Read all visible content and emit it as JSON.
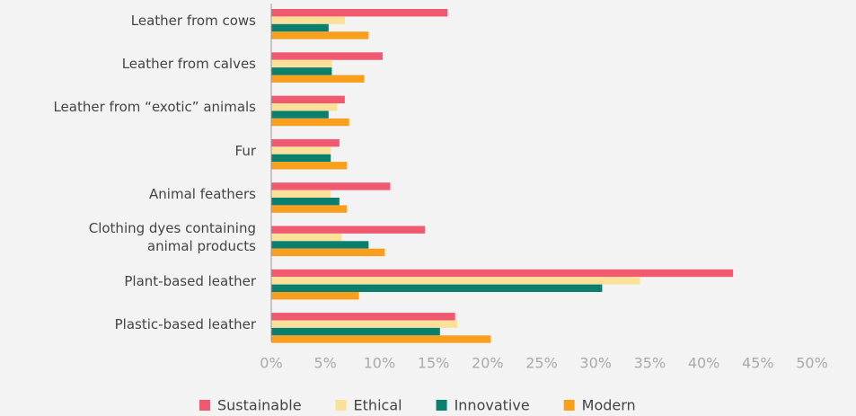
{
  "chart_data": {
    "type": "barh",
    "categories": [
      "Leather from cows",
      "Leather from calves",
      "Leather from “exotic” animals",
      "Fur",
      "Animal feathers",
      "Clothing dyes containing animal products",
      "Plant-based leather",
      "Plastic-based leather"
    ],
    "series": [
      {
        "name": "Sustainable",
        "color": "#f0596f",
        "values": [
          16.3,
          10.3,
          6.8,
          6.3,
          11.0,
          14.2,
          42.7,
          17.0
        ]
      },
      {
        "name": "Ethical",
        "color": "#fbe09a",
        "values": [
          6.8,
          5.6,
          6.1,
          5.5,
          5.5,
          6.5,
          34.1,
          17.2
        ]
      },
      {
        "name": "Innovative",
        "color": "#0b7f6d",
        "values": [
          5.3,
          5.6,
          5.3,
          5.5,
          6.3,
          9.0,
          30.6,
          15.6
        ]
      },
      {
        "name": "Modern",
        "color": "#f8a01d",
        "values": [
          9.0,
          8.6,
          7.2,
          7.0,
          7.0,
          10.5,
          8.1,
          20.3
        ]
      }
    ],
    "xlim": [
      0,
      50
    ],
    "xticks": [
      {
        "value": 0,
        "label": "0%"
      },
      {
        "value": 5,
        "label": "5%"
      },
      {
        "value": 10,
        "label": "10%"
      },
      {
        "value": 15,
        "label": "15%"
      },
      {
        "value": 20,
        "label": "20%"
      },
      {
        "value": 25,
        "label": "25%"
      },
      {
        "value": 30,
        "label": "30%"
      },
      {
        "value": 35,
        "label": "35%"
      },
      {
        "value": 40,
        "label": "40%"
      },
      {
        "value": 45,
        "label": "45%"
      },
      {
        "value": 50,
        "label": "50%"
      }
    ],
    "legend": "bottom"
  }
}
